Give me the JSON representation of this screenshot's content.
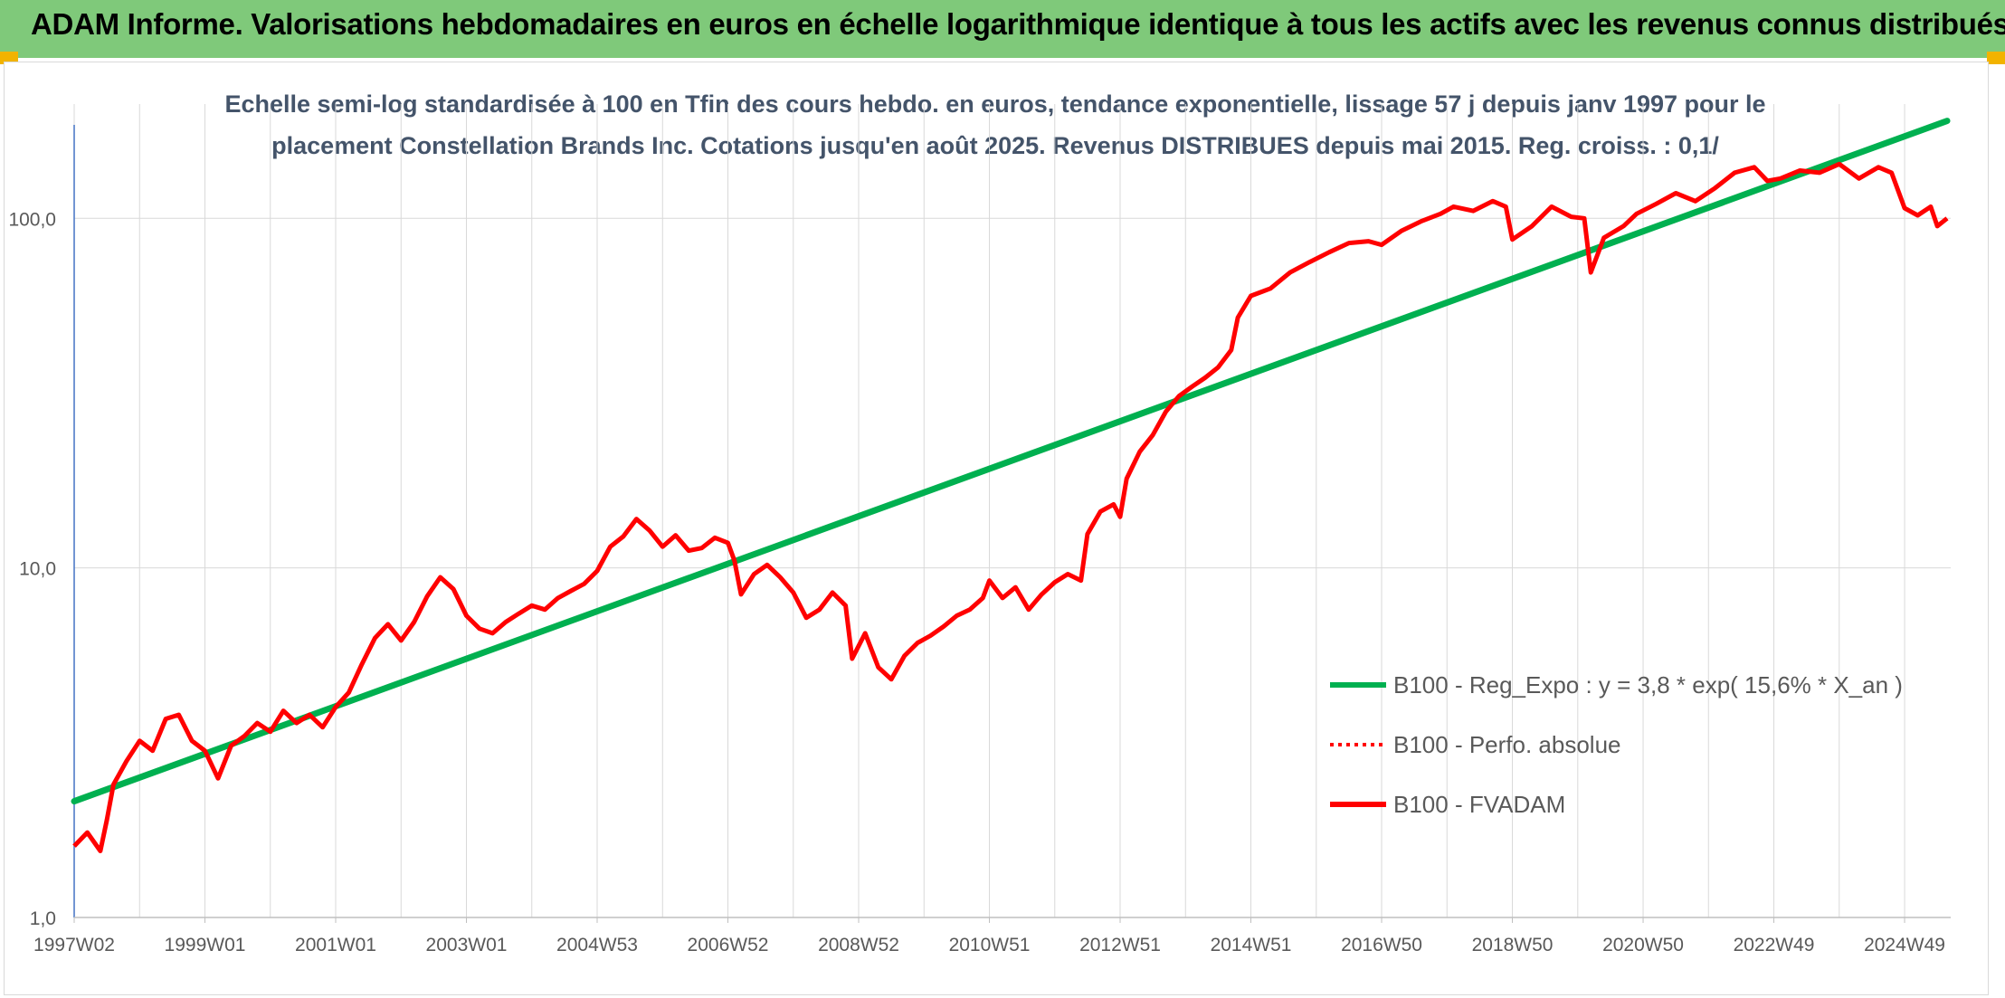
{
  "header": {
    "title": "ADAM Informe. Valorisations hebdomadaires en euros en échelle logarithmique identique à tous les actifs avec les revenus connus distribués"
  },
  "colors": {
    "banner": "#7fc97a",
    "accent": "#f2b300",
    "trend": "#00b050",
    "series": "#ff0000",
    "grid": "#d9d9d9",
    "axis": "#4472c4",
    "title": "#44546a"
  },
  "chart_data": {
    "type": "line",
    "title": "Echelle semi-log standardisée à 100 en Tfin des cours hebdo. en euros, tendance exponentielle, lissage 57 j depuis janv 1997 pour le placement Constellation Brands Inc. Cotations jusqu'en août 2025. Revenus DISTRIBUES depuis mai 2015. Reg. croiss. : 0,1/",
    "y_scale": "log",
    "ylim": [
      1,
      200
    ],
    "xlim": [
      1997.0,
      2025.65
    ],
    "y_ticks": [
      {
        "value": 1,
        "label": "1,0"
      },
      {
        "value": 10,
        "label": "10,0"
      },
      {
        "value": 100,
        "label": "100,0"
      }
    ],
    "x_ticks": [
      {
        "value": 1997.0,
        "label": "1997W02"
      },
      {
        "value": 1999.0,
        "label": "1999W01"
      },
      {
        "value": 2001.0,
        "label": "2001W01"
      },
      {
        "value": 2003.0,
        "label": "2003W01"
      },
      {
        "value": 2005.0,
        "label": "2004W53"
      },
      {
        "value": 2007.0,
        "label": "2006W52"
      },
      {
        "value": 2009.0,
        "label": "2008W52"
      },
      {
        "value": 2011.0,
        "label": "2010W51"
      },
      {
        "value": 2013.0,
        "label": "2012W51"
      },
      {
        "value": 2015.0,
        "label": "2014W51"
      },
      {
        "value": 2017.0,
        "label": "2016W50"
      },
      {
        "value": 2019.0,
        "label": "2018W50"
      },
      {
        "value": 2021.0,
        "label": "2020W50"
      },
      {
        "value": 2023.0,
        "label": "2022W49"
      },
      {
        "value": 2025.0,
        "label": "2024W49"
      }
    ],
    "grid": "vertical-yearly-and-horizontal-decades",
    "legend_position": "bottom-right",
    "legend": [
      {
        "label": "B100 - Reg_Expo : y = 3,8 * exp( 15,6% *  X_an )",
        "style": "solid",
        "color": "#00b050"
      },
      {
        "label": "B100 - Perfo. absolue",
        "style": "dotted",
        "color": "#ff0000"
      },
      {
        "label": "B100 - FVADAM",
        "style": "solid",
        "color": "#ff0000"
      }
    ],
    "series": [
      {
        "name": "B100 - Reg_Expo : y = 3,8 * exp( 15,6% *  X_an )",
        "points": [
          [
            1997.0,
            2.15
          ],
          [
            2025.65,
            190
          ]
        ]
      },
      {
        "name": "B100 - FVADAM",
        "points": [
          [
            1997.0,
            1.6
          ],
          [
            1997.2,
            1.75
          ],
          [
            1997.4,
            1.55
          ],
          [
            1997.5,
            1.9
          ],
          [
            1997.6,
            2.4
          ],
          [
            1997.8,
            2.8
          ],
          [
            1998.0,
            3.2
          ],
          [
            1998.2,
            3.0
          ],
          [
            1998.4,
            3.7
          ],
          [
            1998.6,
            3.8
          ],
          [
            1998.8,
            3.2
          ],
          [
            1999.0,
            3.0
          ],
          [
            1999.2,
            2.5
          ],
          [
            1999.4,
            3.1
          ],
          [
            1999.6,
            3.3
          ],
          [
            1999.8,
            3.6
          ],
          [
            2000.0,
            3.4
          ],
          [
            2000.2,
            3.9
          ],
          [
            2000.4,
            3.6
          ],
          [
            2000.6,
            3.8
          ],
          [
            2000.8,
            3.5
          ],
          [
            2001.0,
            4.0
          ],
          [
            2001.2,
            4.4
          ],
          [
            2001.4,
            5.3
          ],
          [
            2001.6,
            6.3
          ],
          [
            2001.8,
            6.9
          ],
          [
            2002.0,
            6.2
          ],
          [
            2002.2,
            7.0
          ],
          [
            2002.4,
            8.3
          ],
          [
            2002.6,
            9.4
          ],
          [
            2002.8,
            8.7
          ],
          [
            2003.0,
            7.3
          ],
          [
            2003.2,
            6.7
          ],
          [
            2003.4,
            6.5
          ],
          [
            2003.6,
            7.0
          ],
          [
            2003.8,
            7.4
          ],
          [
            2004.0,
            7.8
          ],
          [
            2004.2,
            7.6
          ],
          [
            2004.4,
            8.2
          ],
          [
            2004.6,
            8.6
          ],
          [
            2004.8,
            9.0
          ],
          [
            2005.0,
            9.8
          ],
          [
            2005.2,
            11.5
          ],
          [
            2005.4,
            12.3
          ],
          [
            2005.6,
            13.8
          ],
          [
            2005.8,
            12.8
          ],
          [
            2006.0,
            11.5
          ],
          [
            2006.2,
            12.4
          ],
          [
            2006.4,
            11.2
          ],
          [
            2006.6,
            11.4
          ],
          [
            2006.8,
            12.2
          ],
          [
            2007.0,
            11.8
          ],
          [
            2007.1,
            10.5
          ],
          [
            2007.2,
            8.4
          ],
          [
            2007.4,
            9.6
          ],
          [
            2007.6,
            10.2
          ],
          [
            2007.8,
            9.4
          ],
          [
            2008.0,
            8.5
          ],
          [
            2008.2,
            7.2
          ],
          [
            2008.4,
            7.6
          ],
          [
            2008.6,
            8.5
          ],
          [
            2008.8,
            7.8
          ],
          [
            2008.9,
            5.5
          ],
          [
            2009.1,
            6.5
          ],
          [
            2009.3,
            5.2
          ],
          [
            2009.5,
            4.8
          ],
          [
            2009.7,
            5.6
          ],
          [
            2009.9,
            6.1
          ],
          [
            2010.1,
            6.4
          ],
          [
            2010.3,
            6.8
          ],
          [
            2010.5,
            7.3
          ],
          [
            2010.7,
            7.6
          ],
          [
            2010.9,
            8.2
          ],
          [
            2011.0,
            9.2
          ],
          [
            2011.2,
            8.2
          ],
          [
            2011.4,
            8.8
          ],
          [
            2011.6,
            7.6
          ],
          [
            2011.8,
            8.4
          ],
          [
            2012.0,
            9.1
          ],
          [
            2012.2,
            9.6
          ],
          [
            2012.4,
            9.2
          ],
          [
            2012.5,
            12.5
          ],
          [
            2012.7,
            14.5
          ],
          [
            2012.9,
            15.2
          ],
          [
            2013.0,
            14.0
          ],
          [
            2013.1,
            18.0
          ],
          [
            2013.3,
            21.5
          ],
          [
            2013.5,
            24.0
          ],
          [
            2013.7,
            28.0
          ],
          [
            2013.9,
            31.0
          ],
          [
            2014.1,
            33.0
          ],
          [
            2014.3,
            35.0
          ],
          [
            2014.5,
            37.5
          ],
          [
            2014.7,
            42.0
          ],
          [
            2014.8,
            52.0
          ],
          [
            2015.0,
            60.0
          ],
          [
            2015.3,
            63.0
          ],
          [
            2015.6,
            70.0
          ],
          [
            2015.9,
            75.0
          ],
          [
            2016.2,
            80.0
          ],
          [
            2016.5,
            85.0
          ],
          [
            2016.8,
            86.0
          ],
          [
            2017.0,
            84.0
          ],
          [
            2017.3,
            92.0
          ],
          [
            2017.6,
            98.0
          ],
          [
            2017.9,
            103.0
          ],
          [
            2018.1,
            108.0
          ],
          [
            2018.4,
            105.0
          ],
          [
            2018.7,
            112.0
          ],
          [
            2018.9,
            108.0
          ],
          [
            2019.0,
            87.0
          ],
          [
            2019.3,
            95.0
          ],
          [
            2019.6,
            108.0
          ],
          [
            2019.9,
            101.0
          ],
          [
            2020.1,
            100.0
          ],
          [
            2020.2,
            70.0
          ],
          [
            2020.4,
            88.0
          ],
          [
            2020.7,
            95.0
          ],
          [
            2020.9,
            103.0
          ],
          [
            2021.2,
            110.0
          ],
          [
            2021.5,
            118.0
          ],
          [
            2021.8,
            112.0
          ],
          [
            2022.1,
            122.0
          ],
          [
            2022.4,
            135.0
          ],
          [
            2022.7,
            140.0
          ],
          [
            2022.9,
            128.0
          ],
          [
            2023.1,
            130.0
          ],
          [
            2023.4,
            137.0
          ],
          [
            2023.7,
            135.0
          ],
          [
            2024.0,
            143.0
          ],
          [
            2024.3,
            130.0
          ],
          [
            2024.6,
            140.0
          ],
          [
            2024.8,
            135.0
          ],
          [
            2025.0,
            107.0
          ],
          [
            2025.2,
            102.0
          ],
          [
            2025.4,
            108.0
          ],
          [
            2025.5,
            95.0
          ],
          [
            2025.65,
            100.0
          ]
        ]
      }
    ]
  }
}
